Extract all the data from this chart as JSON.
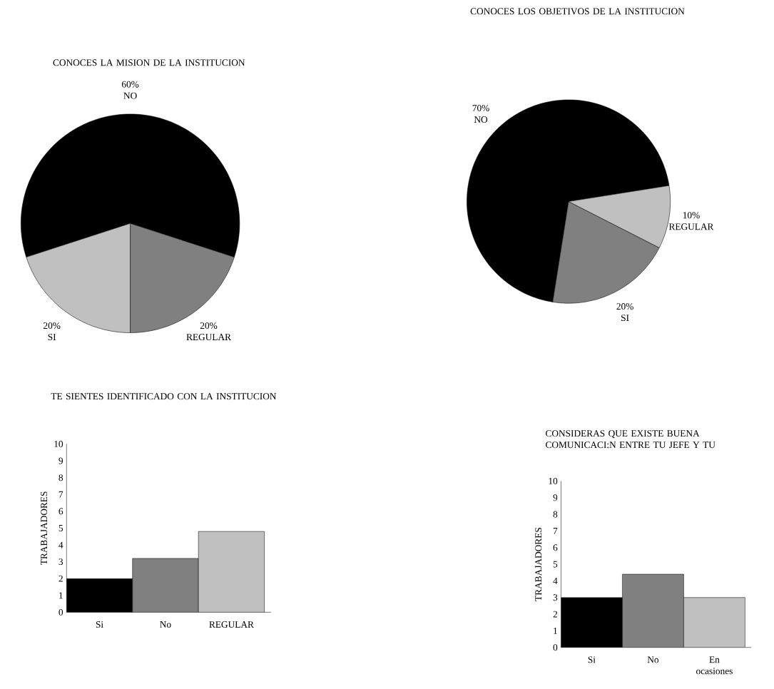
{
  "chart_data": [
    {
      "type": "pie",
      "title": "CONOCES LA MISION DE LA INSTITUCION",
      "categories": [
        "NO",
        "SI",
        "REGULAR"
      ],
      "values": [
        60,
        20,
        20
      ],
      "colors": [
        "#000000",
        "#c0c0c0",
        "#808080"
      ],
      "value_labels": [
        "60%",
        "20%",
        "20%"
      ]
    },
    {
      "type": "pie",
      "title": "CONOCES LOS OBJETIVOS DE LA INSTITUCION",
      "categories": [
        "NO",
        "SI",
        "REGULAR"
      ],
      "values": [
        70,
        20,
        10
      ],
      "colors": [
        "#000000",
        "#808080",
        "#c0c0c0"
      ],
      "value_labels": [
        "70%",
        "20%",
        "10%"
      ]
    },
    {
      "type": "bar",
      "title": "TE SIENTES IDENTIFICADO CON LA INSTITUCION",
      "ylabel": "TRABAJADORES",
      "categories": [
        "Si",
        "No",
        "REGULAR"
      ],
      "values": [
        2,
        3.2,
        4.8
      ],
      "colors": [
        "#000000",
        "#808080",
        "#c0c0c0"
      ],
      "ylim": [
        0,
        10
      ],
      "yticks": [
        0,
        1,
        2,
        3,
        4,
        5,
        6,
        7,
        8,
        9,
        10
      ]
    },
    {
      "type": "bar",
      "title": "CONSIDERAS QUE EXISTE BUENA COMUNICACI:N ENTRE TU JEFE Y TU",
      "ylabel": "TRABAJADORES",
      "categories": [
        "Si",
        "No",
        "En ocasiones"
      ],
      "values": [
        3,
        4.4,
        3
      ],
      "colors": [
        "#000000",
        "#808080",
        "#c0c0c0"
      ],
      "ylim": [
        0,
        10
      ],
      "yticks": [
        0,
        1,
        2,
        3,
        4,
        5,
        6,
        7,
        8,
        9,
        10
      ]
    }
  ]
}
